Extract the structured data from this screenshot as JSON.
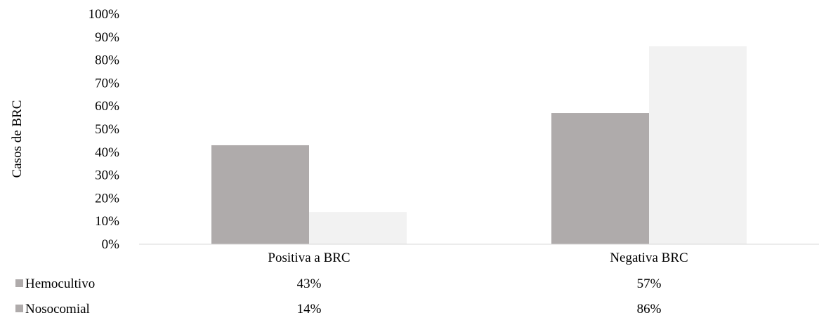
{
  "chart_data": {
    "type": "bar",
    "title": "",
    "ylabel": "Casos de BRC",
    "xlabel": "",
    "ylim": [
      0,
      100
    ],
    "y_step": 10,
    "y_tick_suffix": "%",
    "grid": false,
    "legend": "data-table-below",
    "categories": [
      "Positiva a BRC",
      "Negativa BRC"
    ],
    "series": [
      {
        "name": "Hemocultivo",
        "values": [
          43,
          57
        ],
        "labels": [
          "43%",
          "57%"
        ],
        "color": "#afabab"
      },
      {
        "name": "Nosocomial",
        "values": [
          14,
          86
        ],
        "labels": [
          "14%",
          "86%"
        ],
        "color": "#f2f2f2"
      }
    ]
  }
}
